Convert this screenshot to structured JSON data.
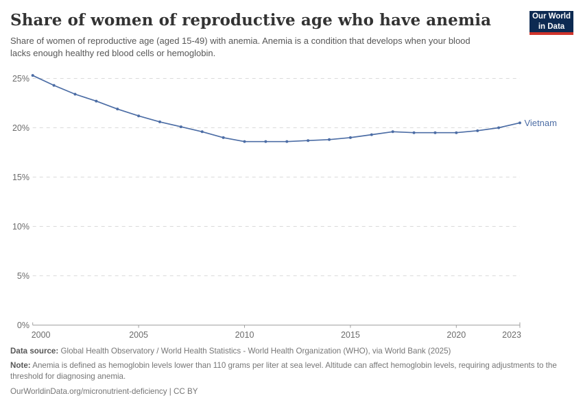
{
  "header": {
    "title": "Share of women of reproductive age who have anemia",
    "subtitle": "Share of women of reproductive age (aged 15-49) with anemia. Anemia is a condition that develops when your blood lacks enough healthy red blood cells or hemoglobin."
  },
  "logo": {
    "line1": "Our World",
    "line2": "in Data",
    "bg_color": "#0d2a52",
    "accent_color": "#d0342c"
  },
  "chart_data": {
    "type": "line",
    "title": "Share of women of reproductive age who have anemia",
    "entity": "Vietnam",
    "unit": "%",
    "x": [
      2000,
      2001,
      2002,
      2003,
      2004,
      2005,
      2006,
      2007,
      2008,
      2009,
      2010,
      2011,
      2012,
      2013,
      2014,
      2015,
      2016,
      2017,
      2018,
      2019,
      2020,
      2021,
      2022,
      2023
    ],
    "values": [
      25.3,
      24.3,
      23.4,
      22.7,
      21.9,
      21.2,
      20.6,
      20.1,
      19.6,
      19.0,
      18.6,
      18.6,
      18.6,
      18.7,
      18.8,
      19.0,
      19.3,
      19.6,
      19.5,
      19.5,
      19.5,
      19.7,
      20.0,
      20.5
    ],
    "yticks": [
      0,
      5,
      10,
      15,
      20,
      25
    ],
    "xticks": [
      2000,
      2005,
      2010,
      2015,
      2020,
      2023
    ],
    "ylim": [
      0,
      26
    ],
    "grid": "horizontal-dashed",
    "legend_position": "end-of-line",
    "line_color": "#4c6da5",
    "grid_color": "#dadada",
    "axis_color": "#9e9e9e",
    "tick_label_color": "#6b6b6b"
  },
  "footer": {
    "data_source_label": "Data source:",
    "data_source_text": "Global Health Observatory / World Health Statistics - World Health Organization (WHO), via World Bank (2025)",
    "note_label": "Note:",
    "note_text": "Anemia is defined as hemoglobin levels lower than 110 grams per liter at sea level. Altitude can affect hemoglobin levels, requiring adjustments to the threshold for diagnosing anemia.",
    "link": "OurWorldinData.org/micronutrient-deficiency",
    "separator": " | ",
    "license": "CC BY"
  }
}
